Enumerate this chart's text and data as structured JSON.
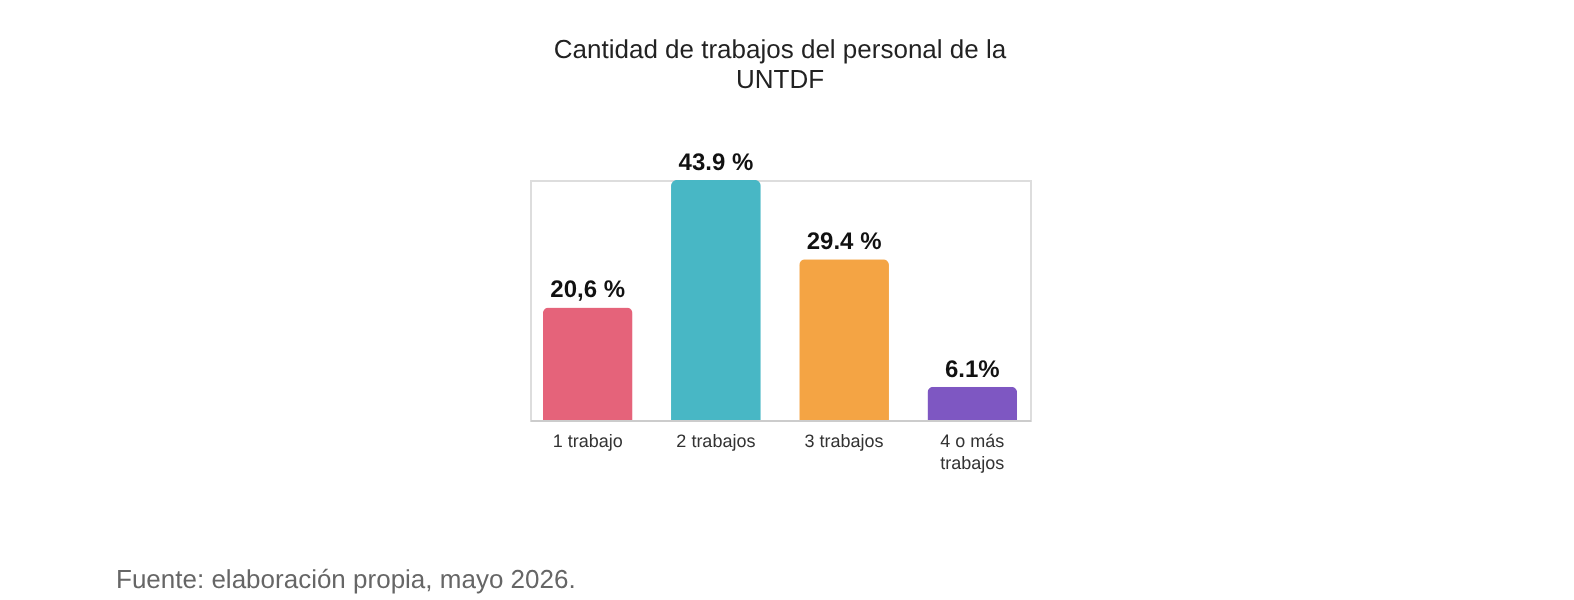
{
  "chart_data": {
    "type": "bar",
    "title": "Cantidad de trabajos del personal de la UNTDF",
    "categories": [
      "1 trabajo",
      "2 trabajos",
      "3 trabajos",
      "4 o más trabajos"
    ],
    "values": [
      20.6,
      43.9,
      29.4,
      6.1
    ],
    "colors": [
      "#e5637a",
      "#48b7c5",
      "#f4a444",
      "#7e57c2"
    ],
    "value_labels": [
      "20,6 %",
      "43.9 %",
      "29.4 %",
      "6.1%"
    ],
    "annotations": [
      "Fuente: elaboración propia, mayo 2026."
    ],
    "grid": false
  }
}
